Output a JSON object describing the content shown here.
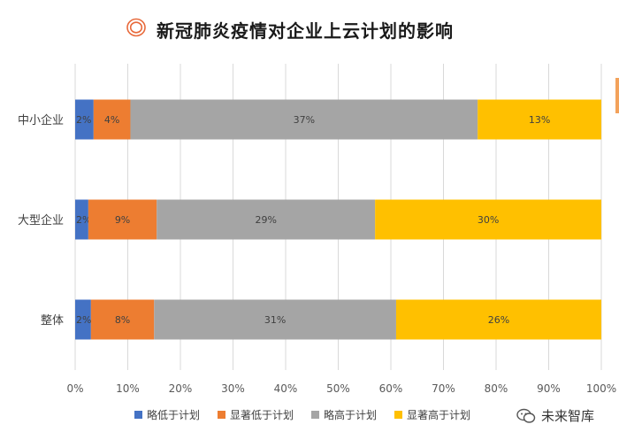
{
  "title": "新冠肺炎疫情对企业上云计划的影响",
  "watermark": "未来智库",
  "colors": {
    "title_icon": "#e8693a",
    "series": [
      "#4472c4",
      "#ed7d31",
      "#a5a5a5",
      "#ffc000"
    ],
    "gridline": "#d9d9d9",
    "tick_text": "#595959",
    "label_text": "#404040"
  },
  "chart_data": {
    "type": "bar",
    "orientation": "horizontal",
    "stacked": true,
    "percent_stacked": true,
    "categories": [
      "中小企业",
      "大型企业",
      "整体"
    ],
    "series": [
      {
        "name": "略低于计划",
        "values": [
          2,
          2,
          2
        ],
        "bar_share": [
          3.5,
          2.5,
          3
        ]
      },
      {
        "name": "显著低于计划",
        "values": [
          4,
          9,
          8
        ],
        "bar_share": [
          7,
          13,
          12
        ]
      },
      {
        "name": "略高于计划",
        "values": [
          37,
          29,
          31
        ],
        "bar_share": [
          66,
          41.5,
          46
        ]
      },
      {
        "name": "显著高于计划",
        "values": [
          13,
          30,
          26
        ],
        "bar_share": [
          23.5,
          43,
          39
        ]
      }
    ],
    "data_labels": [
      [
        "2%",
        "4%",
        "37%",
        "13%"
      ],
      [
        "2%",
        "9%",
        "29%",
        "30%"
      ],
      [
        "2%",
        "8%",
        "31%",
        "26%"
      ]
    ],
    "x_ticks": [
      "0%",
      "10%",
      "20%",
      "30%",
      "40%",
      "50%",
      "60%",
      "70%",
      "80%",
      "90%",
      "100%"
    ],
    "xlim": [
      0,
      100
    ],
    "grid": true,
    "legend_position": "bottom"
  }
}
